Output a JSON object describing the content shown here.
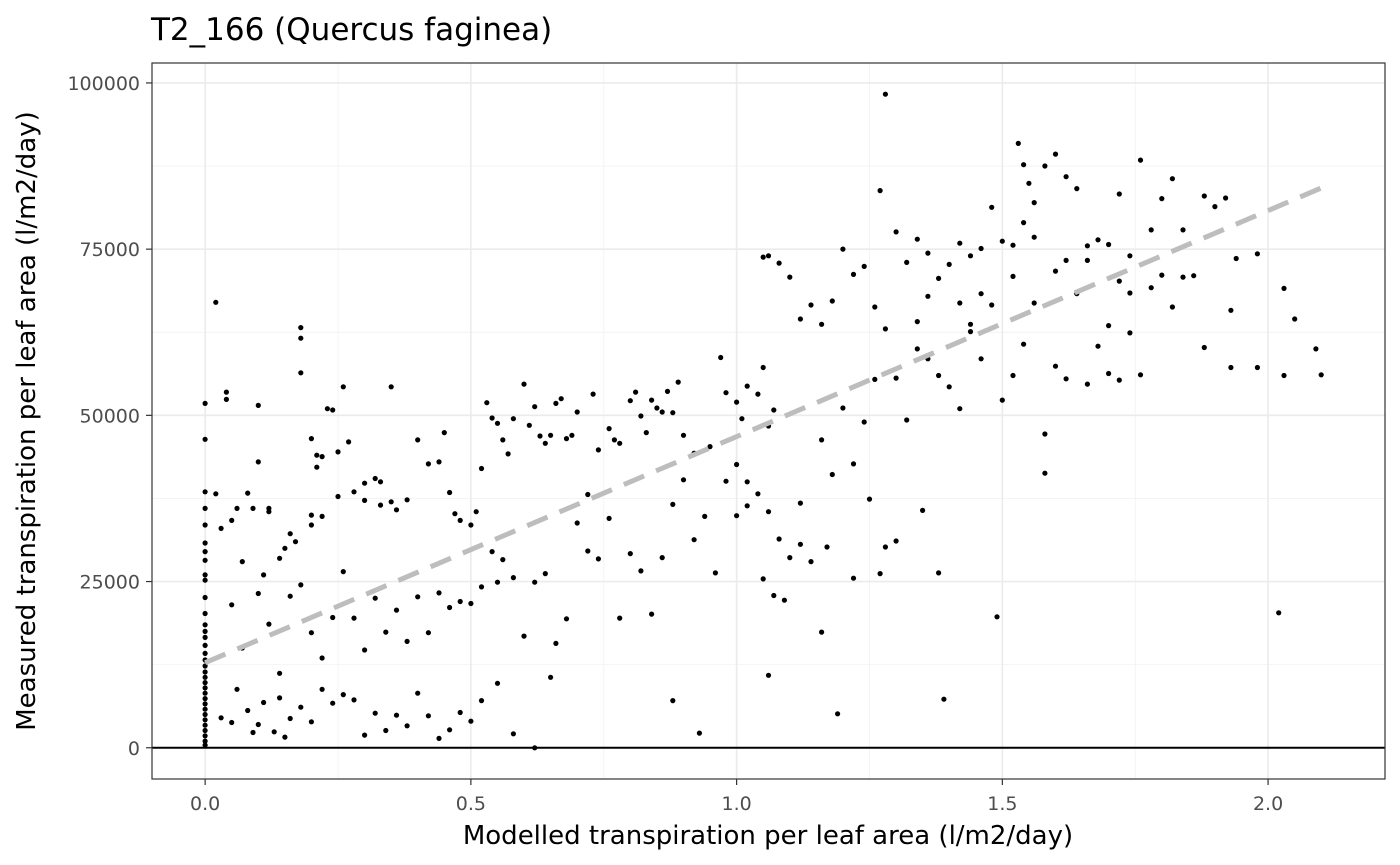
{
  "chart_data": {
    "type": "scatter",
    "title": "T2_166 (Quercus faginea)",
    "xlabel": "Modelled transpiration per leaf area (l/m2/day)",
    "ylabel": "Measured transpiration per leaf area (l/m2/day)",
    "xlim": [
      -0.1,
      2.22
    ],
    "ylim": [
      -4700,
      103000
    ],
    "x_ticks": [
      0.0,
      0.5,
      1.0,
      1.5,
      2.0
    ],
    "x_tick_labels": [
      "0.0",
      "0.5",
      "1.0",
      "1.5",
      "2.0"
    ],
    "y_ticks": [
      0,
      25000,
      50000,
      75000,
      100000
    ],
    "y_tick_labels": [
      "0",
      "25000",
      "50000",
      "75000",
      "100000"
    ],
    "grid": true,
    "reference_line": {
      "y": 0,
      "color": "#000000"
    },
    "trend_line": {
      "style": "dashed",
      "color": "#bdbdbd",
      "x": [
        0.0,
        2.1
      ],
      "y": [
        12800,
        84200
      ]
    },
    "point_color": "#000000",
    "points": [
      [
        0,
        51800
      ],
      [
        0,
        46400
      ],
      [
        0,
        38500
      ],
      [
        0,
        36000
      ],
      [
        0,
        33500
      ],
      [
        0,
        30800
      ],
      [
        0,
        29500
      ],
      [
        0,
        28200
      ],
      [
        0,
        26000
      ],
      [
        0,
        25200
      ],
      [
        0,
        22600
      ],
      [
        0,
        20200
      ],
      [
        0,
        18500
      ],
      [
        0,
        17500
      ],
      [
        0,
        16600
      ],
      [
        0,
        15400
      ],
      [
        0,
        14200
      ],
      [
        0,
        13200
      ],
      [
        0,
        12300
      ],
      [
        0,
        11400
      ],
      [
        0,
        10600
      ],
      [
        0,
        9800
      ],
      [
        0,
        9000
      ],
      [
        0,
        8200
      ],
      [
        0,
        7400
      ],
      [
        0,
        6600
      ],
      [
        0,
        5800
      ],
      [
        0,
        5000
      ],
      [
        0,
        4200
      ],
      [
        0,
        3400
      ],
      [
        0,
        2600
      ],
      [
        0,
        1800
      ],
      [
        0,
        1000
      ],
      [
        0,
        400
      ],
      [
        0.02,
        67000
      ],
      [
        0.02,
        38200
      ],
      [
        0.03,
        33000
      ],
      [
        0.04,
        52400
      ],
      [
        0.04,
        53500
      ],
      [
        0.05,
        34200
      ],
      [
        0.06,
        36000
      ],
      [
        0.07,
        28000
      ],
      [
        0.08,
        38300
      ],
      [
        0.09,
        36000
      ],
      [
        0.1,
        43000
      ],
      [
        0.12,
        36000
      ],
      [
        0.12,
        35500
      ],
      [
        0.1,
        51500
      ],
      [
        0.11,
        26000
      ],
      [
        0.14,
        28500
      ],
      [
        0.15,
        30000
      ],
      [
        0.16,
        32200
      ],
      [
        0.17,
        31000
      ],
      [
        0.18,
        63200
      ],
      [
        0.18,
        61600
      ],
      [
        0.18,
        56400
      ],
      [
        0.2,
        46500
      ],
      [
        0.21,
        44000
      ],
      [
        0.21,
        42200
      ],
      [
        0.22,
        43800
      ],
      [
        0.23,
        51000
      ],
      [
        0.24,
        50800
      ],
      [
        0.25,
        44500
      ],
      [
        0.26,
        54300
      ],
      [
        0.27,
        46000
      ],
      [
        0.2,
        35000
      ],
      [
        0.2,
        33500
      ],
      [
        0.22,
        34800
      ],
      [
        0.25,
        37800
      ],
      [
        0.28,
        38500
      ],
      [
        0.3,
        39800
      ],
      [
        0.32,
        40500
      ],
      [
        0.33,
        40000
      ],
      [
        0.35,
        54300
      ],
      [
        0.3,
        37200
      ],
      [
        0.33,
        36500
      ],
      [
        0.35,
        37000
      ],
      [
        0.36,
        35800
      ],
      [
        0.38,
        37300
      ],
      [
        0.4,
        46300
      ],
      [
        0.42,
        42700
      ],
      [
        0.44,
        43000
      ],
      [
        0.45,
        47400
      ],
      [
        0.46,
        38400
      ],
      [
        0.47,
        35200
      ],
      [
        0.48,
        34200
      ],
      [
        0.5,
        33500
      ],
      [
        0.51,
        35500
      ],
      [
        0.52,
        42000
      ],
      [
        0.53,
        51900
      ],
      [
        0.54,
        49600
      ],
      [
        0.55,
        48800
      ],
      [
        0.56,
        46300
      ],
      [
        0.57,
        44200
      ],
      [
        0.58,
        49500
      ],
      [
        0.6,
        54700
      ],
      [
        0.61,
        48500
      ],
      [
        0.62,
        51300
      ],
      [
        0.63,
        46900
      ],
      [
        0.64,
        45800
      ],
      [
        0.65,
        47000
      ],
      [
        0.66,
        51800
      ],
      [
        0.67,
        52500
      ],
      [
        0.68,
        46500
      ],
      [
        0.69,
        47000
      ],
      [
        0.7,
        50500
      ],
      [
        0.72,
        38100
      ],
      [
        0.73,
        53200
      ],
      [
        0.74,
        44800
      ],
      [
        0.76,
        48000
      ],
      [
        0.77,
        46300
      ],
      [
        0.78,
        45800
      ],
      [
        0.8,
        52200
      ],
      [
        0.81,
        53500
      ],
      [
        0.82,
        49900
      ],
      [
        0.83,
        47400
      ],
      [
        0.84,
        52300
      ],
      [
        0.85,
        51100
      ],
      [
        0.86,
        50500
      ],
      [
        0.87,
        53600
      ],
      [
        0.88,
        50400
      ],
      [
        0.89,
        55000
      ],
      [
        0.9,
        47000
      ],
      [
        0.92,
        44300
      ],
      [
        0.95,
        45300
      ],
      [
        0.97,
        58700
      ],
      [
        0.98,
        53400
      ],
      [
        1.0,
        52000
      ],
      [
        1.01,
        49500
      ],
      [
        1.02,
        54400
      ],
      [
        1.04,
        53200
      ],
      [
        1.05,
        57200
      ],
      [
        1.06,
        48400
      ],
      [
        1.07,
        50800
      ],
      [
        0.05,
        21500
      ],
      [
        0.07,
        15000
      ],
      [
        0.1,
        23200
      ],
      [
        0.12,
        18600
      ],
      [
        0.14,
        11200
      ],
      [
        0.16,
        22800
      ],
      [
        0.18,
        24500
      ],
      [
        0.2,
        17300
      ],
      [
        0.22,
        13500
      ],
      [
        0.24,
        19600
      ],
      [
        0.26,
        26500
      ],
      [
        0.28,
        19500
      ],
      [
        0.3,
        14700
      ],
      [
        0.32,
        22500
      ],
      [
        0.34,
        17400
      ],
      [
        0.36,
        20700
      ],
      [
        0.38,
        16000
      ],
      [
        0.4,
        22700
      ],
      [
        0.42,
        17300
      ],
      [
        0.44,
        23300
      ],
      [
        0.46,
        21100
      ],
      [
        0.48,
        22000
      ],
      [
        0.5,
        21700
      ],
      [
        0.52,
        24200
      ],
      [
        0.54,
        29500
      ],
      [
        0.55,
        24900
      ],
      [
        0.56,
        28300
      ],
      [
        0.58,
        25600
      ],
      [
        0.6,
        16800
      ],
      [
        0.62,
        24900
      ],
      [
        0.64,
        26200
      ],
      [
        0.66,
        15700
      ],
      [
        0.68,
        19400
      ],
      [
        0.7,
        33800
      ],
      [
        0.72,
        29600
      ],
      [
        0.74,
        28400
      ],
      [
        0.76,
        34500
      ],
      [
        0.78,
        19500
      ],
      [
        0.8,
        29200
      ],
      [
        0.82,
        26600
      ],
      [
        0.84,
        20100
      ],
      [
        0.86,
        28600
      ],
      [
        0.88,
        36600
      ],
      [
        0.9,
        40300
      ],
      [
        0.92,
        31300
      ],
      [
        0.94,
        34800
      ],
      [
        0.96,
        26300
      ],
      [
        0.98,
        40100
      ],
      [
        1.0,
        34900
      ],
      [
        1.02,
        36400
      ],
      [
        0.03,
        4500
      ],
      [
        0.05,
        3800
      ],
      [
        0.06,
        8800
      ],
      [
        0.08,
        5600
      ],
      [
        0.09,
        2300
      ],
      [
        0.1,
        3500
      ],
      [
        0.11,
        6800
      ],
      [
        0.13,
        2400
      ],
      [
        0.14,
        7500
      ],
      [
        0.15,
        1600
      ],
      [
        0.16,
        4400
      ],
      [
        0.18,
        6100
      ],
      [
        0.2,
        3900
      ],
      [
        0.22,
        8800
      ],
      [
        0.24,
        6700
      ],
      [
        0.26,
        8000
      ],
      [
        0.28,
        7200
      ],
      [
        0.3,
        1900
      ],
      [
        0.32,
        5200
      ],
      [
        0.34,
        2600
      ],
      [
        0.36,
        4900
      ],
      [
        0.38,
        3300
      ],
      [
        0.4,
        8200
      ],
      [
        0.42,
        4800
      ],
      [
        0.44,
        1400
      ],
      [
        0.46,
        2700
      ],
      [
        0.48,
        5300
      ],
      [
        0.5,
        4000
      ],
      [
        0.52,
        7100
      ],
      [
        0.55,
        9700
      ],
      [
        0.58,
        2100
      ],
      [
        0.62,
        0
      ],
      [
        0.65,
        10600
      ],
      [
        0.88,
        7100
      ],
      [
        0.93,
        2200
      ],
      [
        1.06,
        10900
      ],
      [
        1.19,
        5100
      ],
      [
        1.39,
        7300
      ],
      [
        1.49,
        19700
      ],
      [
        2.02,
        20300
      ],
      [
        1.05,
        73800
      ],
      [
        1.06,
        74000
      ],
      [
        1.08,
        72900
      ],
      [
        1.1,
        70800
      ],
      [
        1.12,
        64500
      ],
      [
        1.14,
        66600
      ],
      [
        1.16,
        63700
      ],
      [
        1.18,
        67200
      ],
      [
        1.2,
        75000
      ],
      [
        1.22,
        71200
      ],
      [
        1.24,
        72400
      ],
      [
        1.26,
        66300
      ],
      [
        1.27,
        83800
      ],
      [
        1.28,
        98300
      ],
      [
        1.3,
        77600
      ],
      [
        1.32,
        73000
      ],
      [
        1.34,
        76500
      ],
      [
        1.36,
        74400
      ],
      [
        1.38,
        70600
      ],
      [
        1.4,
        72700
      ],
      [
        1.42,
        75900
      ],
      [
        1.44,
        74000
      ],
      [
        1.46,
        75100
      ],
      [
        1.48,
        81300
      ],
      [
        1.5,
        76200
      ],
      [
        1.52,
        70900
      ],
      [
        1.53,
        90900
      ],
      [
        1.54,
        87700
      ],
      [
        1.55,
        84900
      ],
      [
        1.56,
        82000
      ],
      [
        1.58,
        87500
      ],
      [
        1.6,
        89300
      ],
      [
        1.62,
        85900
      ],
      [
        1.64,
        84100
      ],
      [
        1.66,
        73300
      ],
      [
        1.68,
        76400
      ],
      [
        1.7,
        75700
      ],
      [
        1.72,
        83300
      ],
      [
        1.74,
        74000
      ],
      [
        1.76,
        88400
      ],
      [
        1.78,
        77900
      ],
      [
        1.8,
        82600
      ],
      [
        1.82,
        85600
      ],
      [
        1.84,
        77900
      ],
      [
        1.86,
        71000
      ],
      [
        1.88,
        83000
      ],
      [
        1.9,
        81400
      ],
      [
        1.92,
        82700
      ],
      [
        1.94,
        73600
      ],
      [
        1.98,
        74300
      ],
      [
        1.0,
        42600
      ],
      [
        1.02,
        40000
      ],
      [
        1.04,
        38200
      ],
      [
        1.06,
        35500
      ],
      [
        1.08,
        31400
      ],
      [
        1.1,
        28600
      ],
      [
        1.12,
        30600
      ],
      [
        1.14,
        28000
      ],
      [
        1.16,
        46300
      ],
      [
        1.18,
        41100
      ],
      [
        1.2,
        51100
      ],
      [
        1.22,
        42700
      ],
      [
        1.24,
        49000
      ],
      [
        1.26,
        55400
      ],
      [
        1.28,
        63000
      ],
      [
        1.3,
        55600
      ],
      [
        1.32,
        49300
      ],
      [
        1.34,
        60000
      ],
      [
        1.36,
        58500
      ],
      [
        1.38,
        56000
      ],
      [
        1.4,
        54300
      ],
      [
        1.42,
        51000
      ],
      [
        1.44,
        62600
      ],
      [
        1.46,
        58500
      ],
      [
        1.48,
        66600
      ],
      [
        1.5,
        52300
      ],
      [
        1.52,
        56000
      ],
      [
        1.54,
        60700
      ],
      [
        1.56,
        66900
      ],
      [
        1.58,
        47200
      ],
      [
        1.6,
        57400
      ],
      [
        1.62,
        55500
      ],
      [
        1.64,
        68300
      ],
      [
        1.66,
        54700
      ],
      [
        1.68,
        60400
      ],
      [
        1.7,
        56300
      ],
      [
        1.72,
        55300
      ],
      [
        1.74,
        62400
      ],
      [
        1.76,
        56100
      ],
      [
        1.78,
        69200
      ],
      [
        1.8,
        71100
      ],
      [
        1.82,
        66300
      ],
      [
        1.84,
        70800
      ],
      [
        1.88,
        60200
      ],
      [
        1.93,
        65800
      ],
      [
        1.93,
        57200
      ],
      [
        1.98,
        57200
      ],
      [
        2.03,
        69100
      ],
      [
        2.05,
        64500
      ],
      [
        2.03,
        56000
      ],
      [
        2.09,
        60000
      ],
      [
        2.1,
        56100
      ],
      [
        1.58,
        41300
      ],
      [
        1.38,
        26300
      ],
      [
        1.27,
        26200
      ],
      [
        1.22,
        25500
      ],
      [
        1.17,
        30200
      ],
      [
        1.12,
        36800
      ],
      [
        1.09,
        22200
      ],
      [
        1.07,
        22900
      ],
      [
        1.05,
        25400
      ],
      [
        1.16,
        17400
      ],
      [
        1.35,
        35700
      ],
      [
        1.3,
        31100
      ],
      [
        1.28,
        30200
      ],
      [
        1.25,
        37400
      ],
      [
        1.6,
        71700
      ],
      [
        1.62,
        73300
      ],
      [
        1.66,
        75500
      ],
      [
        1.7,
        63500
      ],
      [
        1.72,
        70200
      ],
      [
        1.74,
        68400
      ],
      [
        1.52,
        75600
      ],
      [
        1.54,
        79000
      ],
      [
        1.56,
        76800
      ],
      [
        1.46,
        68300
      ],
      [
        1.44,
        63700
      ],
      [
        1.42,
        66900
      ],
      [
        1.36,
        67900
      ],
      [
        1.34,
        64100
      ]
    ]
  }
}
